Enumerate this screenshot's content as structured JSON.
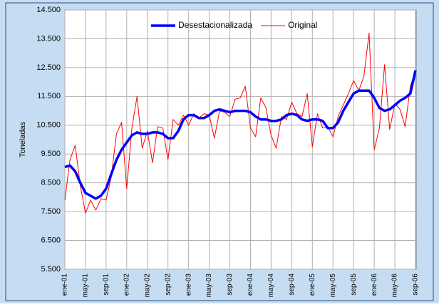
{
  "chart_data": {
    "type": "line",
    "y_label": "Toneladas",
    "categories": [
      "ene-01",
      null,
      null,
      null,
      "may-01",
      null,
      null,
      null,
      "sep-01",
      null,
      null,
      null,
      "ene-02",
      null,
      null,
      null,
      "may-02",
      null,
      null,
      null,
      "sep-02",
      null,
      null,
      null,
      "ene-03",
      null,
      null,
      null,
      "may-03",
      null,
      null,
      null,
      "sep-03",
      null,
      null,
      null,
      "ene-04",
      null,
      null,
      null,
      "may-04",
      null,
      null,
      null,
      "sep-04",
      null,
      null,
      null,
      "ene-05",
      null,
      null,
      null,
      "may-05",
      null,
      null,
      null,
      "sep-05",
      null,
      null,
      null,
      "ene-06",
      null,
      null,
      null,
      "may-06",
      null,
      null,
      null,
      "sep-06"
    ],
    "series": [
      {
        "name": "Desestacionalizada",
        "color": "#0000ff",
        "width": 3.5,
        "values": [
          9050,
          9100,
          8900,
          8500,
          8150,
          8050,
          7950,
          8050,
          8300,
          8800,
          9300,
          9650,
          9900,
          10150,
          10250,
          10200,
          10200,
          10250,
          10250,
          10200,
          10050,
          10050,
          10300,
          10700,
          10850,
          10850,
          10750,
          10750,
          10850,
          11000,
          11050,
          11000,
          10950,
          11000,
          11000,
          11000,
          10950,
          10800,
          10700,
          10700,
          10650,
          10650,
          10700,
          10850,
          10900,
          10850,
          10700,
          10650,
          10700,
          10700,
          10650,
          10400,
          10400,
          10600,
          11000,
          11300,
          11600,
          11700,
          11700,
          11700,
          11450,
          11100,
          11000,
          11050,
          11200,
          11350,
          11450,
          11600,
          12400
        ]
      },
      {
        "name": "Original",
        "color": "#ff0000",
        "width": 1,
        "values": [
          7900,
          9300,
          9800,
          8400,
          7450,
          7900,
          7550,
          7950,
          7900,
          8700,
          10200,
          10600,
          8300,
          10400,
          11500,
          9700,
          10300,
          9200,
          10450,
          10400,
          9300,
          10700,
          10500,
          10850,
          10500,
          10900,
          10750,
          10900,
          10850,
          10050,
          11000,
          10950,
          10800,
          11400,
          11450,
          11850,
          10400,
          10100,
          11450,
          11100,
          10150,
          9700,
          10800,
          10700,
          11300,
          10900,
          10800,
          11600,
          9750,
          10900,
          10400,
          10450,
          10100,
          10800,
          11200,
          11600,
          12050,
          11700,
          12200,
          13700,
          9650,
          10400,
          12600,
          10350,
          11250,
          11050,
          10450,
          11850,
          12400
        ]
      }
    ],
    "ylim": [
      5500,
      14500
    ],
    "yticks": [
      {
        "value": 5500,
        "label": "5.500"
      },
      {
        "value": 6500,
        "label": "6.500"
      },
      {
        "value": 7500,
        "label": "7.500"
      },
      {
        "value": 8500,
        "label": "8.500"
      },
      {
        "value": 9500,
        "label": "9.500"
      },
      {
        "value": 10500,
        "label": "10.500"
      },
      {
        "value": 11500,
        "label": "11.500"
      },
      {
        "value": 12500,
        "label": "12.500"
      },
      {
        "value": 13500,
        "label": "13.500"
      },
      {
        "value": 14500,
        "label": "14.500"
      }
    ],
    "grid": true,
    "legend": "top"
  }
}
